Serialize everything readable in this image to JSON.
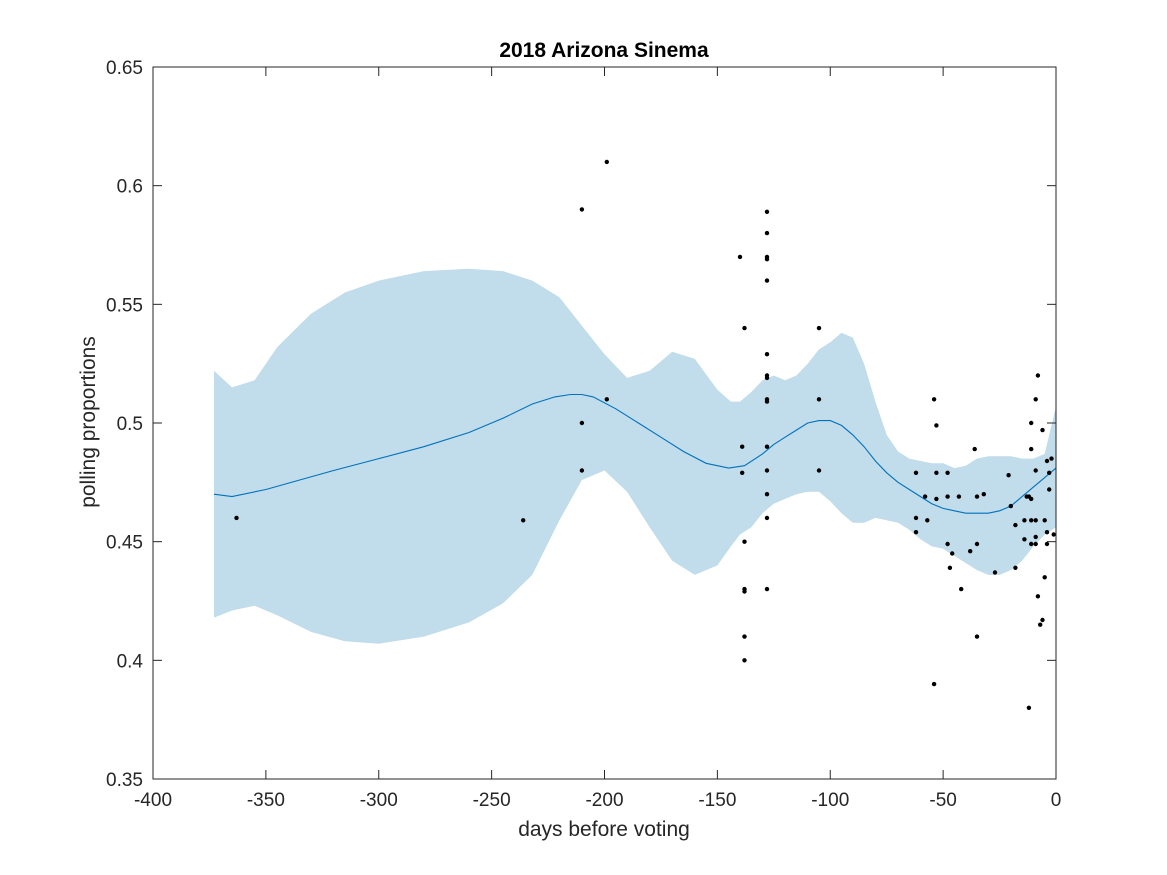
{
  "chart_data": {
    "type": "scatter",
    "title": "2018 Arizona Sinema",
    "xlabel": "days before voting",
    "ylabel": "polling proportions",
    "xlim": [
      -400,
      0
    ],
    "ylim": [
      0.35,
      0.65
    ],
    "xticks": [
      -400,
      -350,
      -300,
      -250,
      -200,
      -150,
      -100,
      -50,
      0
    ],
    "xtick_labels": [
      "-400",
      "-350",
      "-300",
      "-250",
      "-200",
      "-150",
      "-100",
      "-50",
      "0"
    ],
    "yticks": [
      0.35,
      0.4,
      0.45,
      0.5,
      0.55,
      0.6,
      0.65
    ],
    "ytick_labels": [
      "0.35",
      "0.4",
      "0.45",
      "0.5",
      "0.55",
      "0.6",
      "0.65"
    ],
    "grid": false,
    "colors": {
      "band": "#c1dcea",
      "trend": "#0072bd",
      "points": "#000000",
      "axis": "#262626"
    },
    "band": {
      "x": [
        -373,
        -365,
        -355,
        -345,
        -330,
        -315,
        -300,
        -280,
        -260,
        -245,
        -232,
        -220,
        -210,
        -200,
        -190,
        -180,
        -170,
        -160,
        -150,
        -144,
        -140,
        -135,
        -130,
        -125,
        -120,
        -115,
        -110,
        -105,
        -100,
        -95,
        -90,
        -85,
        -80,
        -75,
        -70,
        -65,
        -60,
        -55,
        -50,
        -45,
        -40,
        -35,
        -30,
        -25,
        -20,
        -15,
        -10,
        -5,
        0
      ],
      "upper": [
        0.522,
        0.515,
        0.518,
        0.532,
        0.546,
        0.555,
        0.56,
        0.564,
        0.565,
        0.564,
        0.56,
        0.553,
        0.541,
        0.529,
        0.519,
        0.522,
        0.53,
        0.527,
        0.514,
        0.509,
        0.509,
        0.513,
        0.518,
        0.52,
        0.518,
        0.52,
        0.525,
        0.531,
        0.534,
        0.538,
        0.536,
        0.525,
        0.509,
        0.495,
        0.488,
        0.485,
        0.484,
        0.483,
        0.483,
        0.481,
        0.482,
        0.485,
        0.486,
        0.486,
        0.486,
        0.485,
        0.485,
        0.487,
        0.507
      ],
      "lower": [
        0.418,
        0.421,
        0.423,
        0.419,
        0.412,
        0.408,
        0.407,
        0.41,
        0.416,
        0.424,
        0.436,
        0.459,
        0.476,
        0.48,
        0.471,
        0.456,
        0.442,
        0.436,
        0.44,
        0.448,
        0.453,
        0.456,
        0.462,
        0.466,
        0.468,
        0.47,
        0.471,
        0.471,
        0.467,
        0.462,
        0.458,
        0.458,
        0.46,
        0.459,
        0.458,
        0.455,
        0.451,
        0.448,
        0.447,
        0.444,
        0.441,
        0.438,
        0.436,
        0.436,
        0.438,
        0.442,
        0.448,
        0.453,
        0.456
      ]
    },
    "trend": {
      "x": [
        -373,
        -365,
        -350,
        -335,
        -320,
        -300,
        -280,
        -260,
        -245,
        -232,
        -222,
        -215,
        -210,
        -205,
        -195,
        -185,
        -175,
        -165,
        -155,
        -145,
        -138,
        -130,
        -125,
        -120,
        -115,
        -110,
        -105,
        -100,
        -95,
        -90,
        -85,
        -80,
        -75,
        -70,
        -65,
        -60,
        -55,
        -50,
        -45,
        -40,
        -35,
        -30,
        -25,
        -20,
        -15,
        -10,
        -5,
        0
      ],
      "y": [
        0.47,
        0.469,
        0.472,
        0.476,
        0.48,
        0.485,
        0.49,
        0.496,
        0.502,
        0.508,
        0.511,
        0.512,
        0.512,
        0.511,
        0.506,
        0.5,
        0.494,
        0.488,
        0.483,
        0.481,
        0.482,
        0.487,
        0.491,
        0.494,
        0.497,
        0.5,
        0.501,
        0.501,
        0.499,
        0.495,
        0.49,
        0.484,
        0.479,
        0.475,
        0.472,
        0.469,
        0.466,
        0.464,
        0.463,
        0.462,
        0.462,
        0.462,
        0.463,
        0.465,
        0.469,
        0.473,
        0.477,
        0.481
      ]
    },
    "points": [
      [
        -363,
        0.46
      ],
      [
        -236,
        0.459
      ],
      [
        -210,
        0.59
      ],
      [
        -210,
        0.5
      ],
      [
        -210,
        0.48
      ],
      [
        -199,
        0.61
      ],
      [
        -199,
        0.51
      ],
      [
        -140,
        0.57
      ],
      [
        -139,
        0.49
      ],
      [
        -139,
        0.479
      ],
      [
        -138,
        0.54
      ],
      [
        -138,
        0.45
      ],
      [
        -138,
        0.43
      ],
      [
        -138,
        0.429
      ],
      [
        -138,
        0.41
      ],
      [
        -138,
        0.4
      ],
      [
        -128,
        0.589
      ],
      [
        -128,
        0.58
      ],
      [
        -128,
        0.57
      ],
      [
        -128,
        0.569
      ],
      [
        -128,
        0.56
      ],
      [
        -128,
        0.529
      ],
      [
        -128,
        0.52
      ],
      [
        -128,
        0.519
      ],
      [
        -128,
        0.51
      ],
      [
        -128,
        0.509
      ],
      [
        -128,
        0.49
      ],
      [
        -128,
        0.48
      ],
      [
        -128,
        0.47
      ],
      [
        -128,
        0.46
      ],
      [
        -128,
        0.43
      ],
      [
        -105,
        0.54
      ],
      [
        -105,
        0.51
      ],
      [
        -105,
        0.48
      ],
      [
        -62,
        0.479
      ],
      [
        -62,
        0.46
      ],
      [
        -62,
        0.454
      ],
      [
        -58,
        0.469
      ],
      [
        -57,
        0.459
      ],
      [
        -54,
        0.51
      ],
      [
        -54,
        0.39
      ],
      [
        -53,
        0.499
      ],
      [
        -53,
        0.479
      ],
      [
        -53,
        0.468
      ],
      [
        -48,
        0.479
      ],
      [
        -48,
        0.469
      ],
      [
        -48,
        0.449
      ],
      [
        -47,
        0.439
      ],
      [
        -46,
        0.445
      ],
      [
        -43,
        0.469
      ],
      [
        -42,
        0.43
      ],
      [
        -38,
        0.446
      ],
      [
        -36,
        0.489
      ],
      [
        -35,
        0.469
      ],
      [
        -35,
        0.449
      ],
      [
        -35,
        0.41
      ],
      [
        -32,
        0.47
      ],
      [
        -27,
        0.437
      ],
      [
        -21,
        0.478
      ],
      [
        -20,
        0.465
      ],
      [
        -18,
        0.457
      ],
      [
        -18,
        0.439
      ],
      [
        -14,
        0.459
      ],
      [
        -14,
        0.451
      ],
      [
        -13,
        0.469
      ],
      [
        -12,
        0.469
      ],
      [
        -12,
        0.38
      ],
      [
        -11,
        0.468
      ],
      [
        -11,
        0.459
      ],
      [
        -11,
        0.449
      ],
      [
        -11,
        0.5
      ],
      [
        -11,
        0.489
      ],
      [
        -9,
        0.51
      ],
      [
        -9,
        0.48
      ],
      [
        -9,
        0.459
      ],
      [
        -9,
        0.452
      ],
      [
        -9,
        0.449
      ],
      [
        -8,
        0.52
      ],
      [
        -8,
        0.427
      ],
      [
        -7,
        0.415
      ],
      [
        -6,
        0.497
      ],
      [
        -6,
        0.417
      ],
      [
        -5,
        0.459
      ],
      [
        -5,
        0.435
      ],
      [
        -4,
        0.484
      ],
      [
        -4,
        0.454
      ],
      [
        -4,
        0.449
      ],
      [
        -3,
        0.479
      ],
      [
        -3,
        0.472
      ],
      [
        -2,
        0.485
      ],
      [
        -1,
        0.453
      ]
    ]
  }
}
